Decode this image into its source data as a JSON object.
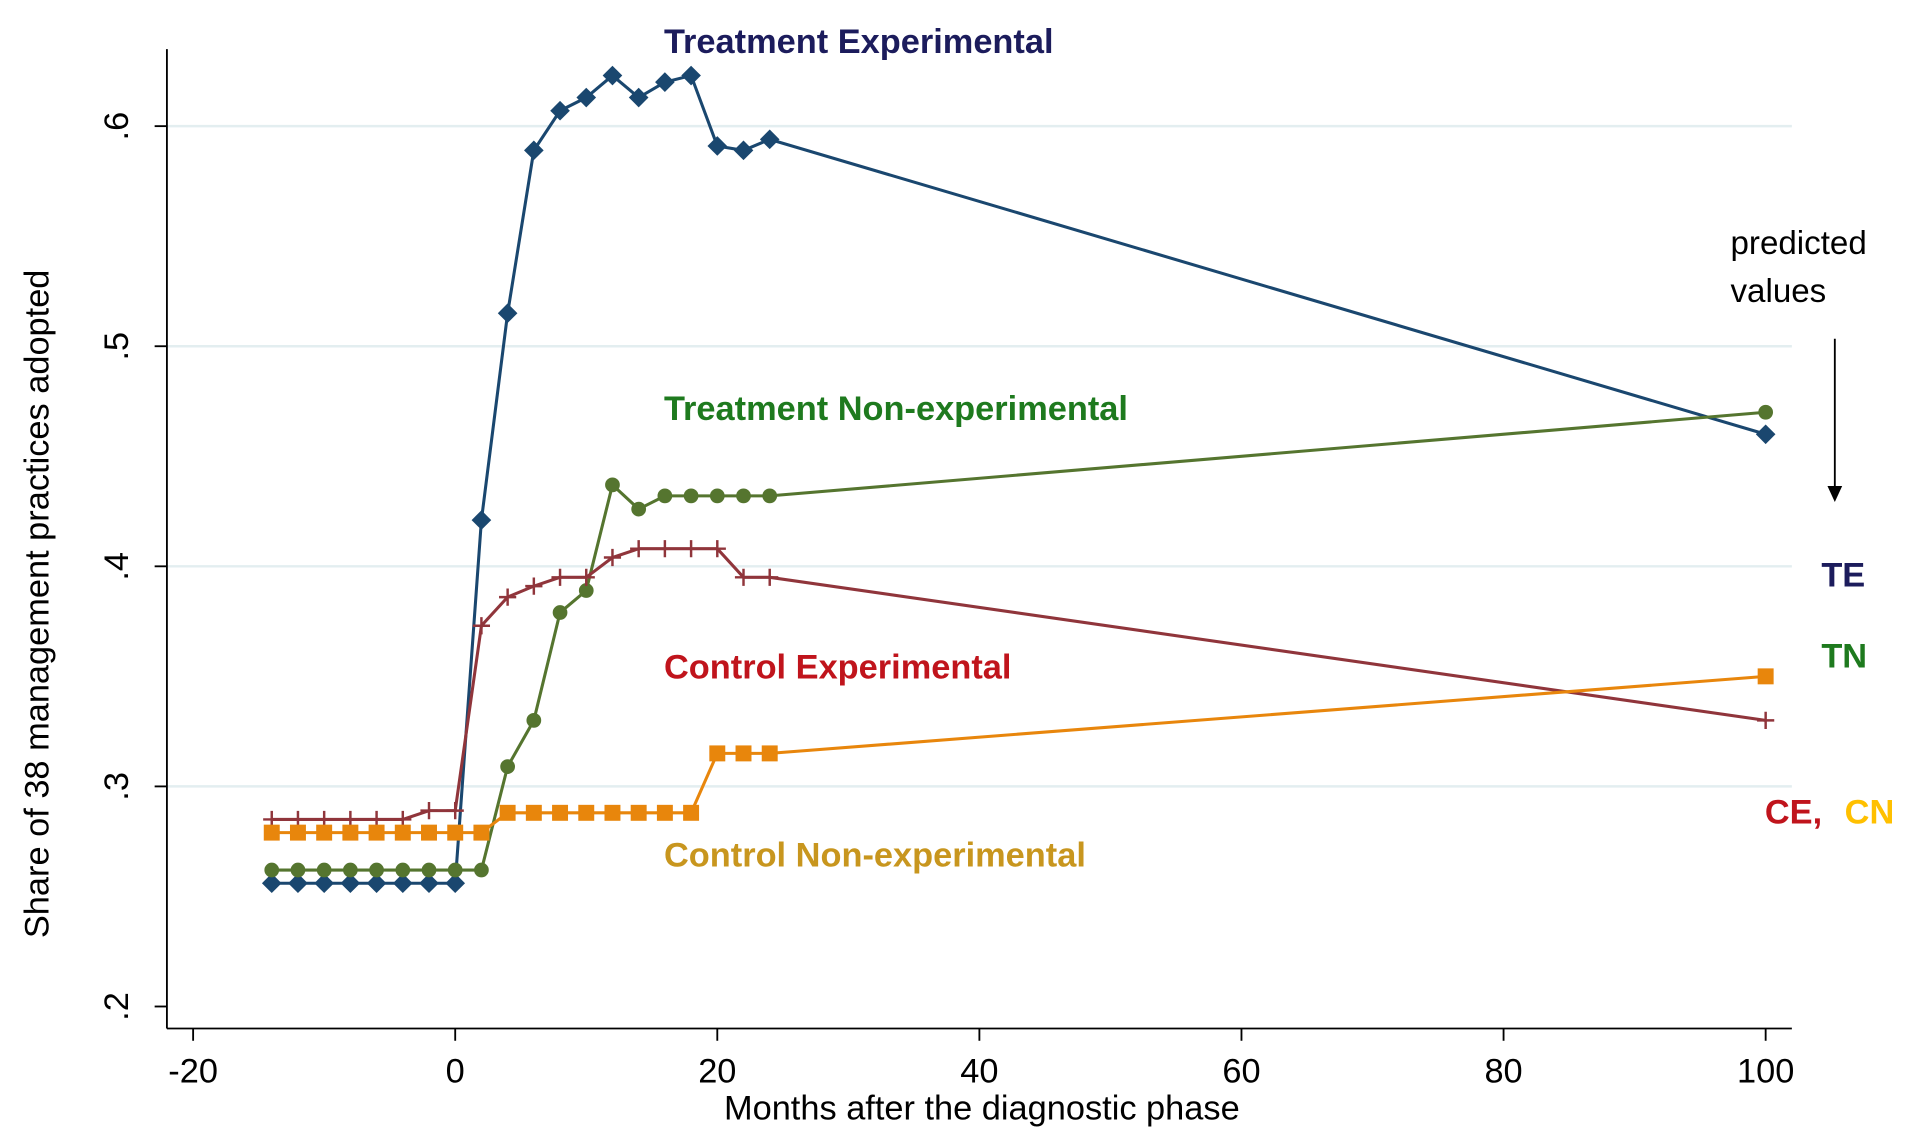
{
  "chart_data": {
    "type": "line",
    "xlabel": "Months after the diagnostic phase",
    "ylabel": "Share of 38 management practices adopted",
    "x": [
      -14,
      -12,
      -10,
      -8,
      -6,
      -4,
      -2,
      0,
      2,
      4,
      6,
      8,
      10,
      12,
      14,
      16,
      18,
      20,
      22,
      24,
      100
    ],
    "series": [
      {
        "name": "Treatment Experimental",
        "color": "#1a476f",
        "marker": "diamond",
        "values": [
          0.256,
          0.256,
          0.256,
          0.256,
          0.256,
          0.256,
          0.256,
          0.256,
          0.421,
          0.515,
          0.589,
          0.607,
          0.613,
          0.623,
          0.613,
          0.62,
          0.623,
          0.591,
          0.589,
          0.594,
          0.46
        ]
      },
      {
        "name": "Treatment Non-experimental",
        "color": "#55752f",
        "marker": "circle",
        "values": [
          0.262,
          0.262,
          0.262,
          0.262,
          0.262,
          0.262,
          0.262,
          0.262,
          0.262,
          0.309,
          0.33,
          0.379,
          0.389,
          0.437,
          0.426,
          0.432,
          0.432,
          0.432,
          0.432,
          0.432,
          0.47
        ]
      },
      {
        "name": "Control Experimental",
        "color": "#90353b",
        "marker": "plus",
        "values": [
          0.285,
          0.285,
          0.285,
          0.285,
          0.285,
          0.285,
          0.289,
          0.289,
          0.373,
          0.386,
          0.391,
          0.395,
          0.395,
          0.404,
          0.408,
          0.408,
          0.408,
          0.408,
          0.395,
          0.395,
          0.33
        ]
      },
      {
        "name": "Control Non-experimental",
        "color": "#e8860c",
        "marker": "square",
        "values": [
          0.279,
          0.279,
          0.279,
          0.279,
          0.279,
          0.279,
          0.279,
          0.279,
          0.279,
          0.288,
          0.288,
          0.288,
          0.288,
          0.288,
          0.288,
          0.288,
          0.288,
          0.315,
          0.315,
          0.315,
          0.35
        ]
      }
    ],
    "xlim": [
      -22,
      102
    ],
    "ylim": [
      0.19,
      0.635
    ],
    "xticks": [
      -20,
      0,
      20,
      40,
      60,
      80,
      100
    ],
    "yticks": [
      {
        "value": 0.2,
        "label": ".2"
      },
      {
        "value": 0.3,
        "label": ".3"
      },
      {
        "value": 0.4,
        "label": ".4"
      },
      {
        "value": 0.5,
        "label": ".5"
      },
      {
        "value": 0.6,
        "label": ".6"
      }
    ],
    "grid": true,
    "annotations": [
      {
        "text": "Treatment Experimental",
        "color": "#1c1c5c"
      },
      {
        "text": "Treatment Non-experimental",
        "color": "#1e7a1e"
      },
      {
        "text": "Control Experimental",
        "color": "#c0141c"
      },
      {
        "text": "Control Non-experimental",
        "color": "#c8961e"
      },
      {
        "text": "predicted",
        "color": "#000000"
      },
      {
        "text": "values",
        "color": "#000000"
      },
      {
        "text": "TE",
        "color": "#1c1c5c"
      },
      {
        "text": "TN",
        "color": "#1e7a1e"
      },
      {
        "text": "CE,",
        "color": "#c0141c"
      },
      {
        "text": "CN",
        "color": "#ffc000"
      }
    ]
  }
}
